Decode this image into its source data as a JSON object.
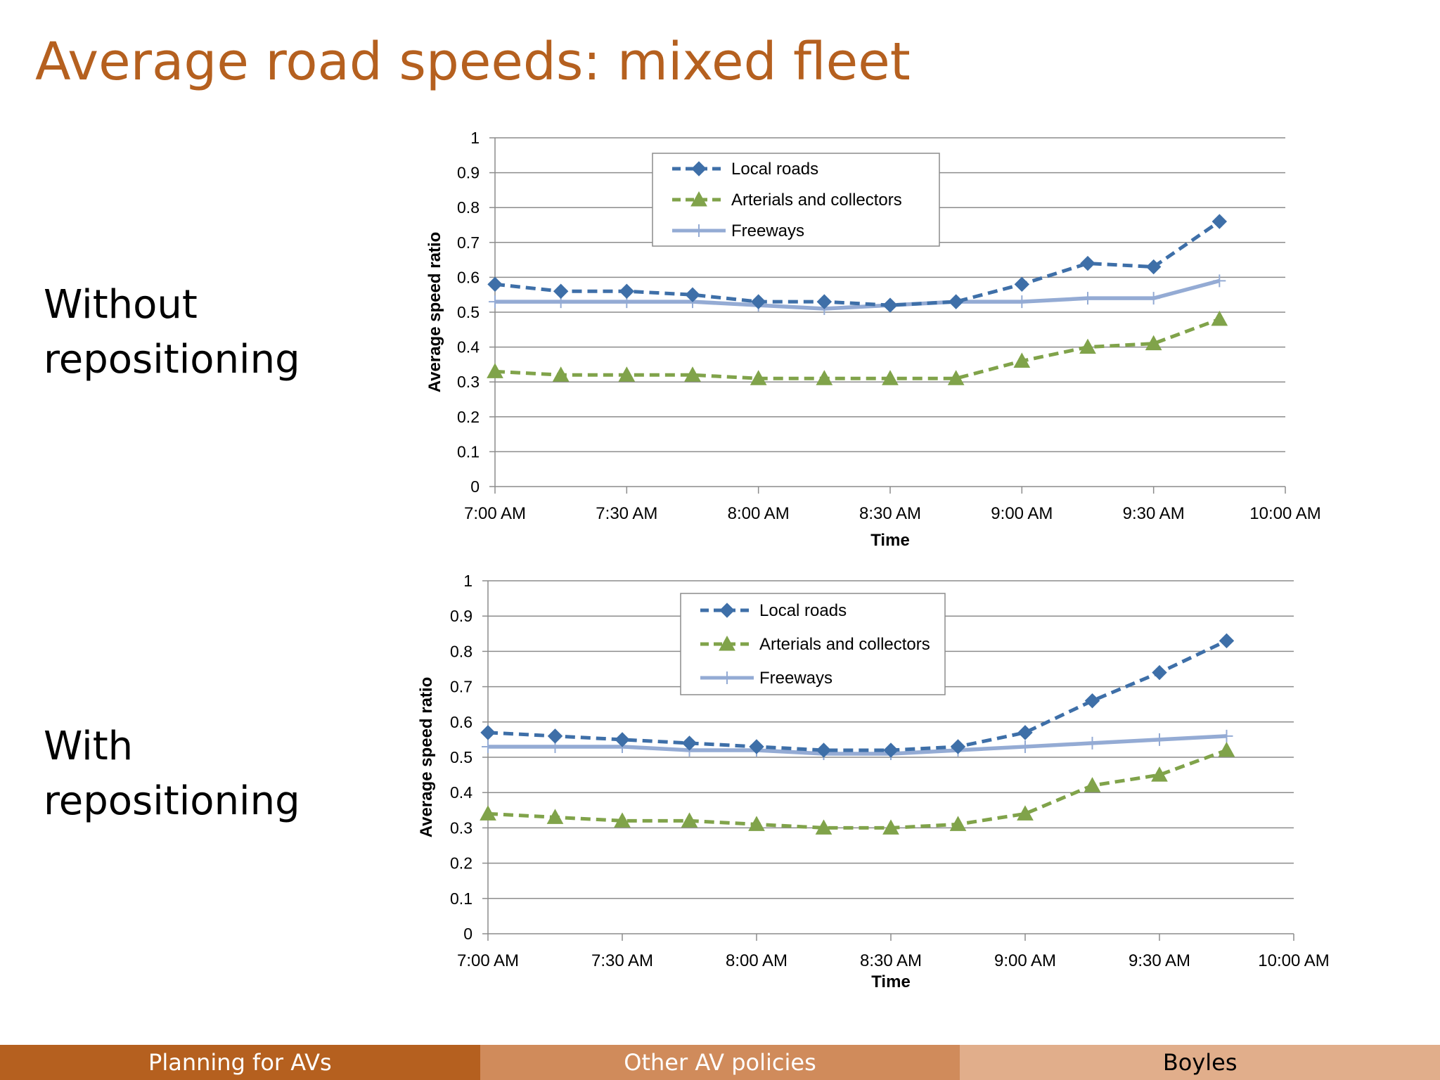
{
  "slide": {
    "title": "Average road speeds: mixed fleet",
    "row_labels": [
      [
        "Without",
        "repositioning"
      ],
      [
        "With",
        "repositioning"
      ]
    ]
  },
  "footer": {
    "left": "Planning for AVs",
    "center": "Other AV policies",
    "right": "Boyles"
  },
  "colors": {
    "title": "#b5601f",
    "local": "#3e6fa8",
    "arterial": "#80a34a",
    "freeway": "#94abd4",
    "footer_left": "#b5601f",
    "footer_center": "#d08b5b",
    "footer_right": "#e1ae8b"
  },
  "chart_data": [
    {
      "type": "line",
      "xlabel": "Time",
      "ylabel": "Average speed ratio",
      "ylim": [
        0,
        1
      ],
      "yticks": [
        "0",
        "0.1",
        "0.2",
        "0.3",
        "0.4",
        "0.5",
        "0.6",
        "0.7",
        "0.8",
        "0.9",
        "1"
      ],
      "xticks": [
        "7:00 AM",
        "7:30 AM",
        "8:00 AM",
        "8:30 AM",
        "9:00 AM",
        "9:30 AM",
        "10:00 AM"
      ],
      "xlim": [
        "7:00 AM",
        "10:00 AM"
      ],
      "x": [
        "7:00 AM",
        "7:15 AM",
        "7:30 AM",
        "7:45 AM",
        "8:00 AM",
        "8:15 AM",
        "8:30 AM",
        "8:45 AM",
        "9:00 AM",
        "9:15 AM",
        "9:30 AM",
        "9:45 AM"
      ],
      "grid": true,
      "legend_position": "top-center",
      "series": [
        {
          "name": "Local roads",
          "style": "dashed-diamond",
          "values": [
            0.58,
            0.56,
            0.56,
            0.55,
            0.53,
            0.53,
            0.52,
            0.53,
            0.58,
            0.64,
            0.63,
            0.76
          ]
        },
        {
          "name": "Arterials and collectors",
          "style": "dashed-triangle",
          "values": [
            0.33,
            0.32,
            0.32,
            0.32,
            0.31,
            0.31,
            0.31,
            0.31,
            0.36,
            0.4,
            0.41,
            0.48
          ]
        },
        {
          "name": "Freeways",
          "style": "solid-plus",
          "values": [
            0.53,
            0.53,
            0.53,
            0.53,
            0.52,
            0.51,
            0.52,
            0.53,
            0.53,
            0.54,
            0.54,
            0.59
          ]
        }
      ]
    },
    {
      "type": "line",
      "xlabel": "Time",
      "ylabel": "Average speed ratio",
      "ylim": [
        0,
        1
      ],
      "yticks": [
        "0",
        "0.1",
        "0.2",
        "0.3",
        "0.4",
        "0.5",
        "0.6",
        "0.7",
        "0.8",
        "0.9",
        "1"
      ],
      "xticks": [
        "7:00 AM",
        "7:30 AM",
        "8:00 AM",
        "8:30 AM",
        "9:00 AM",
        "9:30 AM",
        "10:00 AM"
      ],
      "xlim": [
        "7:00 AM",
        "10:00 AM"
      ],
      "x": [
        "7:00 AM",
        "7:15 AM",
        "7:30 AM",
        "7:45 AM",
        "8:00 AM",
        "8:15 AM",
        "8:30 AM",
        "8:45 AM",
        "9:00 AM",
        "9:15 AM",
        "9:30 AM",
        "9:45 AM"
      ],
      "grid": true,
      "legend_position": "top-center",
      "series": [
        {
          "name": "Local roads",
          "style": "dashed-diamond",
          "values": [
            0.57,
            0.56,
            0.55,
            0.54,
            0.53,
            0.52,
            0.52,
            0.53,
            0.57,
            0.66,
            0.74,
            0.83
          ]
        },
        {
          "name": "Arterials and collectors",
          "style": "dashed-triangle",
          "values": [
            0.34,
            0.33,
            0.32,
            0.32,
            0.31,
            0.3,
            0.3,
            0.31,
            0.34,
            0.42,
            0.45,
            0.52
          ]
        },
        {
          "name": "Freeways",
          "style": "solid-plus",
          "values": [
            0.53,
            0.53,
            0.53,
            0.52,
            0.52,
            0.51,
            0.51,
            0.52,
            0.53,
            0.54,
            0.55,
            0.56
          ]
        }
      ]
    }
  ]
}
